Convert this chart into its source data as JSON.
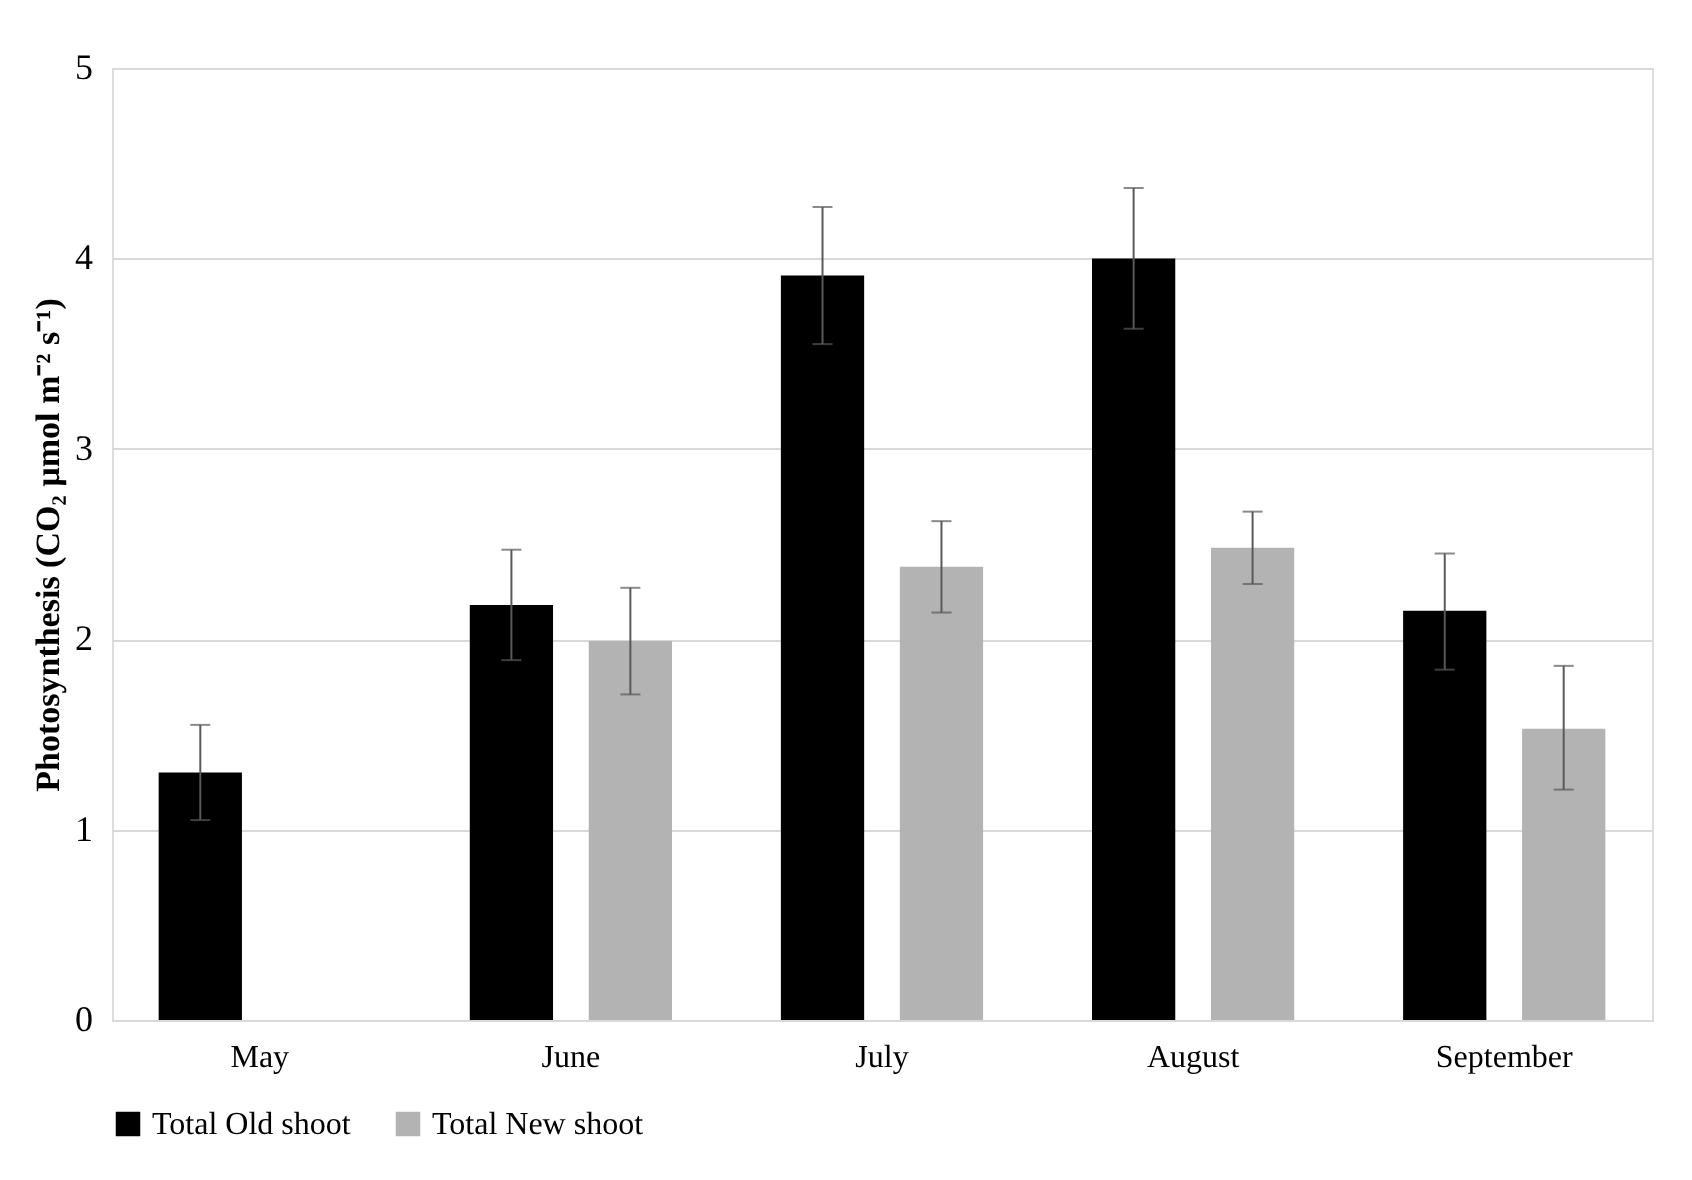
{
  "chart_data": {
    "type": "bar",
    "ylabel": "Photosynthesis (CO₂ µmol m⁻² s⁻¹)",
    "categories": [
      "May",
      "June",
      "July",
      "August",
      "September"
    ],
    "series": [
      {
        "name": "Total Old shoot",
        "color": "#000000",
        "values": [
          1.3,
          2.18,
          3.91,
          4.0,
          2.15
        ],
        "errors": [
          [
            1.05,
            1.55
          ],
          [
            1.89,
            2.47
          ],
          [
            3.55,
            4.27
          ],
          [
            3.63,
            4.37
          ],
          [
            1.84,
            2.45
          ]
        ]
      },
      {
        "name": "Total New shoot",
        "color": "#b3b3b3",
        "values": [
          null,
          1.99,
          2.38,
          2.48,
          1.53
        ],
        "errors": [
          null,
          [
            1.71,
            2.27
          ],
          [
            2.14,
            2.62
          ],
          [
            2.29,
            2.67
          ],
          [
            1.21,
            1.86
          ]
        ]
      }
    ],
    "ylim": [
      0,
      5
    ],
    "yticks": [
      0,
      1,
      2,
      3,
      4,
      5
    ],
    "grid": "y",
    "legend": "bottom"
  }
}
